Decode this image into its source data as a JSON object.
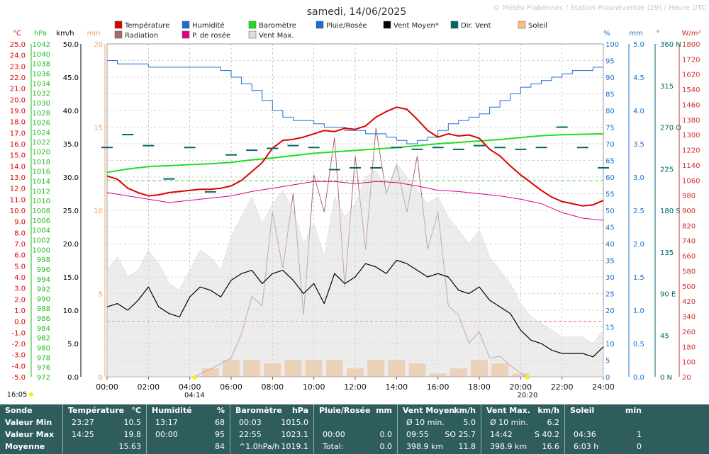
{
  "title": "samedi, 14/06/2025",
  "credit": "© Météo Plabennec / Station Plounéventer (29) / Heure UTC",
  "legend": [
    {
      "label": "Température",
      "color": "#dd0000"
    },
    {
      "label": "Humidité",
      "color": "#1a6fd0"
    },
    {
      "label": "Baromètre",
      "color": "#22dd22"
    },
    {
      "label": "Pluie/Rosée",
      "color": "#1a6fd0"
    },
    {
      "label": "Vent Moyen*",
      "color": "#000000"
    },
    {
      "label": "Dir. Vent",
      "color": "#006666"
    },
    {
      "label": "Soleil",
      "color": "#f8c080"
    },
    {
      "label": "Radiation",
      "color": "#aa6a6a"
    },
    {
      "label": "P. de rosée",
      "color": "#dd0088"
    },
    {
      "label": "Vent Max.",
      "color": "#dddddd"
    }
  ],
  "axes": {
    "temp": {
      "unit": "°C",
      "ticks": [
        "25.0",
        "24.0",
        "23.0",
        "22.0",
        "21.0",
        "20.0",
        "19.0",
        "18.0",
        "17.0",
        "16.0",
        "15.0",
        "14.0",
        "13.0",
        "12.0",
        "11.0",
        "10.0",
        "9.0",
        "8.0",
        "7.0",
        "6.0",
        "5.0",
        "4.0",
        "3.0",
        "2.0",
        "1.0",
        "0.0",
        "-1.0",
        "-2.0",
        "-3.0",
        "-4.0",
        "-5.0"
      ],
      "color": "#dd0000"
    },
    "baro": {
      "unit": "hPa",
      "ticks": [
        "1042",
        "1040",
        "1038",
        "1036",
        "1034",
        "1032",
        "1030",
        "1028",
        "1026",
        "1024",
        "1022",
        "1020",
        "1018",
        "1016",
        "1014",
        "1012",
        "1010",
        "1008",
        "1006",
        "1004",
        "1002",
        "1000",
        "998",
        "996",
        "994",
        "992",
        "990",
        "988",
        "986",
        "984",
        "982",
        "980",
        "978",
        "976",
        "972"
      ],
      "color": "#22bb22"
    },
    "wind": {
      "unit": "km/h",
      "ticks": [
        "50.0",
        "45.0",
        "40.0",
        "35.0",
        "30.0",
        "25.0",
        "20.0",
        "15.0",
        "10.0",
        "5.0",
        "0.0"
      ],
      "color": "#000000"
    },
    "sun": {
      "unit": "min",
      "ticks": [
        "20",
        "15",
        "10",
        "5",
        "0"
      ],
      "color": "#f0a060"
    },
    "hum": {
      "unit": "%",
      "ticks": [
        "100",
        "95",
        "90",
        "85",
        "80",
        "75",
        "70",
        "65",
        "60",
        "55",
        "50",
        "45",
        "40",
        "35",
        "30",
        "25",
        "20",
        "15",
        "10",
        "5",
        "0"
      ],
      "color": "#1a6fd0"
    },
    "rain": {
      "unit": "mm",
      "ticks": [
        "5.0",
        "4.5",
        "4.0",
        "3.5",
        "3.0",
        "2.5",
        "2.0",
        "1.5",
        "1.0",
        "0.5",
        "0.0"
      ],
      "color": "#1a6fd0"
    },
    "dir": {
      "unit": "°",
      "ticks": [
        "360 N",
        "315",
        "270 O",
        "225",
        "180 S",
        "135",
        "90 E",
        "45",
        "0 N"
      ],
      "color": "#006666"
    },
    "rad": {
      "unit": "W/m²",
      "ticks": [
        "1800",
        "1720",
        "1620",
        "1540",
        "1460",
        "1380",
        "1300",
        "1220",
        "1140",
        "1060",
        "980",
        "900",
        "820",
        "740",
        "660",
        "580",
        "500",
        "420",
        "340",
        "260",
        "180",
        "100",
        "20"
      ],
      "color": "#cc3333"
    },
    "x_ticks": [
      "00:00",
      "02:00",
      "04:00",
      "06:00",
      "08:00",
      "10:00",
      "12:00",
      "14:00",
      "16:00",
      "18:00",
      "20:00",
      "22:00",
      "24:00"
    ]
  },
  "sun_events": {
    "prev_sunset": "16:05",
    "sunrise": "04:14",
    "sunset": "20:20"
  },
  "chart_data": {
    "type": "line",
    "title": "samedi, 14/06/2025",
    "x_unit": "hour",
    "xlim": [
      0,
      24
    ],
    "series": [
      {
        "name": "Température",
        "axis": "°C",
        "ylim": [
          -5,
          25
        ],
        "x": [
          0,
          0.5,
          1,
          1.5,
          2,
          2.5,
          3,
          3.5,
          4,
          4.5,
          5,
          5.5,
          6,
          6.5,
          7,
          7.5,
          8,
          8.5,
          9,
          9.5,
          10,
          10.5,
          11,
          11.5,
          12,
          12.5,
          13,
          13.5,
          14,
          14.5,
          15,
          15.5,
          16,
          16.5,
          17,
          17.5,
          18,
          18.5,
          19,
          19.5,
          20,
          20.5,
          21,
          21.5,
          22,
          22.5,
          23,
          23.5,
          24
        ],
        "values": [
          13.1,
          12.8,
          12.0,
          11.6,
          11.3,
          11.4,
          11.6,
          11.7,
          11.8,
          11.9,
          11.9,
          12.0,
          12.2,
          12.7,
          13.5,
          14.3,
          15.6,
          16.3,
          16.4,
          16.6,
          16.9,
          17.2,
          17.1,
          17.4,
          17.3,
          17.6,
          18.4,
          18.9,
          19.3,
          19.1,
          18.2,
          17.2,
          16.6,
          16.9,
          16.7,
          16.8,
          16.5,
          15.5,
          14.9,
          14.0,
          13.2,
          12.5,
          11.8,
          11.2,
          10.8,
          10.6,
          10.4,
          10.5,
          10.9
        ]
      },
      {
        "name": "Humidité",
        "axis": "%",
        "ylim": [
          0,
          100
        ],
        "x": [
          0,
          0.5,
          1,
          2,
          3,
          4,
          5,
          5.5,
          6,
          6.5,
          7,
          7.5,
          8,
          8.5,
          9,
          9.5,
          10,
          10.5,
          11,
          11.5,
          12,
          12.5,
          13,
          13.5,
          14,
          14.5,
          15,
          15.5,
          16,
          16.5,
          17,
          17.5,
          18,
          18.5,
          19,
          19.5,
          20,
          20.5,
          21,
          21.5,
          22,
          22.5,
          23,
          23.5,
          24
        ],
        "values": [
          95,
          94,
          94,
          93,
          93,
          93,
          93,
          92,
          90,
          88,
          86,
          83,
          80,
          78,
          77,
          77,
          76,
          75,
          75,
          74,
          74,
          73,
          73,
          72,
          71,
          70,
          71,
          72,
          74,
          76,
          77,
          78,
          79,
          81,
          83,
          85,
          87,
          88,
          89,
          90,
          91,
          92,
          92,
          93,
          93
        ]
      },
      {
        "name": "Baromètre",
        "axis": "hPa",
        "ylim": [
          972,
          1042
        ],
        "x": [
          0,
          1,
          2,
          3,
          4,
          5,
          6,
          7,
          8,
          9,
          10,
          11,
          12,
          13,
          14,
          15,
          16,
          17,
          18,
          19,
          20,
          21,
          22,
          23,
          24
        ],
        "values": [
          1015.0,
          1015.7,
          1016.2,
          1016.4,
          1016.6,
          1016.8,
          1017.1,
          1017.6,
          1018.0,
          1018.5,
          1019.0,
          1019.3,
          1019.6,
          1019.9,
          1020.2,
          1020.6,
          1021.0,
          1021.3,
          1021.6,
          1021.9,
          1022.3,
          1022.7,
          1022.9,
          1023.0,
          1023.1
        ]
      },
      {
        "name": "P. de rosée",
        "axis": "°C",
        "ylim": [
          -5,
          25
        ],
        "x": [
          0,
          1,
          2,
          3,
          4,
          5,
          6,
          7,
          8,
          9,
          10,
          11,
          12,
          13,
          14,
          15,
          16,
          17,
          18,
          19,
          20,
          21,
          22,
          23,
          24
        ],
        "values": [
          11.6,
          11.3,
          11.0,
          10.7,
          10.9,
          11.1,
          11.3,
          11.7,
          12.0,
          12.3,
          12.6,
          12.6,
          12.4,
          12.6,
          12.5,
          12.2,
          11.8,
          11.7,
          11.5,
          11.3,
          11.0,
          10.6,
          9.8,
          9.3,
          9.1
        ]
      },
      {
        "name": "Vent Moyen*",
        "axis": "km/h",
        "ylim": [
          0,
          50
        ],
        "x": [
          0,
          0.5,
          1,
          1.5,
          2,
          2.5,
          3,
          3.5,
          4,
          4.5,
          5,
          5.5,
          6,
          6.5,
          7,
          7.5,
          8,
          8.5,
          9,
          9.5,
          10,
          10.5,
          11,
          11.5,
          12,
          12.5,
          13,
          13.5,
          14,
          14.5,
          15,
          15.5,
          16,
          16.5,
          17,
          17.5,
          18,
          18.5,
          19,
          19.5,
          20,
          20.5,
          21,
          21.5,
          22,
          22.5,
          23,
          23.5,
          24
        ],
        "values": [
          10.5,
          11.0,
          10.0,
          11.5,
          13.5,
          10.5,
          9.5,
          9.0,
          12.0,
          13.5,
          13.0,
          12.0,
          14.5,
          15.5,
          16.0,
          14.0,
          15.5,
          16.0,
          14.5,
          12.5,
          14.0,
          11.0,
          15.5,
          14.0,
          15.0,
          17.0,
          16.5,
          15.5,
          17.5,
          17.0,
          16.0,
          15.0,
          15.5,
          15.0,
          13.0,
          12.5,
          13.5,
          11.5,
          10.5,
          9.5,
          7.0,
          5.5,
          5.0,
          4.0,
          3.5,
          3.5,
          3.5,
          3.0,
          4.5
        ]
      },
      {
        "name": "Vent Max.",
        "axis": "km/h",
        "ylim": [
          0,
          50
        ],
        "x": [
          0,
          0.5,
          1,
          1.5,
          2,
          2.5,
          3,
          3.5,
          4,
          4.5,
          5,
          5.5,
          6,
          6.5,
          7,
          7.5,
          8,
          8.5,
          9,
          9.5,
          10,
          10.5,
          11,
          11.5,
          12,
          12.5,
          13,
          13.5,
          14,
          14.5,
          15,
          15.5,
          16,
          16.5,
          17,
          17.5,
          18,
          18.5,
          19,
          19.5,
          20,
          20.5,
          21,
          21.5,
          22,
          22.5,
          23,
          23.5,
          24
        ],
        "values": [
          16,
          18,
          15,
          16,
          19,
          17,
          14,
          13,
          16,
          19,
          18,
          16,
          21,
          24,
          27,
          23,
          26,
          28,
          25,
          20,
          23,
          18,
          27,
          24,
          26,
          30,
          31,
          28,
          32,
          30,
          28,
          26,
          27,
          24,
          22,
          20,
          22,
          18,
          16,
          14,
          11,
          9,
          8,
          7,
          6,
          6,
          6,
          5,
          7
        ]
      },
      {
        "name": "Radiation",
        "axis": "W/m²",
        "ylim": [
          20,
          1800
        ],
        "x": [
          4.2,
          5,
          6,
          6.5,
          7,
          7.5,
          8,
          8.5,
          9,
          9.5,
          10,
          10.5,
          11,
          11.5,
          12,
          12.5,
          13,
          13.5,
          14,
          14.5,
          15,
          15.5,
          16,
          16.5,
          17,
          17.5,
          18,
          18.5,
          19,
          19.5,
          20,
          20.3
        ],
        "values": [
          20,
          60,
          120,
          250,
          450,
          400,
          900,
          600,
          1000,
          350,
          1100,
          900,
          1300,
          500,
          1200,
          700,
          1350,
          1000,
          1150,
          900,
          1200,
          700,
          900,
          400,
          350,
          200,
          260,
          120,
          130,
          80,
          40,
          20
        ]
      },
      {
        "name": "Soleil",
        "axis": "min",
        "ylim": [
          0,
          20
        ],
        "x": [
          5,
          6,
          7,
          8,
          9,
          10,
          11,
          12,
          13,
          14,
          15,
          16,
          17,
          18,
          19,
          20
        ],
        "values": [
          0.5,
          1,
          1,
          0.8,
          1,
          1,
          1,
          0.5,
          1,
          1,
          0.8,
          0.2,
          0.5,
          1,
          0.8,
          0.2
        ]
      },
      {
        "name": "Dir. Vent",
        "axis": "°",
        "ylim": [
          0,
          360
        ],
        "x": [
          0,
          1,
          2,
          3,
          4,
          5,
          6,
          7,
          8,
          9,
          10,
          11,
          12,
          13,
          14,
          15,
          16,
          17,
          18,
          19,
          20,
          21,
          22,
          23,
          24
        ],
        "values": [
          248,
          262,
          250,
          214,
          248,
          200,
          240,
          245,
          247,
          250,
          248,
          224,
          226,
          226,
          248,
          246,
          248,
          246,
          250,
          248,
          246,
          248,
          270,
          248,
          226
        ]
      }
    ]
  },
  "footer": {
    "columns": [
      {
        "header": "Sonde",
        "rows": [
          "Valeur Min",
          "Valeur Max",
          "Moyenne"
        ]
      },
      {
        "header": "Température",
        "unit": "°C",
        "rows": [
          [
            "23:27",
            "10.5"
          ],
          [
            "14:25",
            "19.8"
          ],
          [
            "",
            "15.63"
          ]
        ]
      },
      {
        "header": "Humidité",
        "unit": "%",
        "rows": [
          [
            "13:17",
            "68"
          ],
          [
            "00:00",
            "95"
          ],
          [
            "",
            "84"
          ]
        ]
      },
      {
        "header": "Baromètre",
        "unit": "hPa",
        "rows": [
          [
            "00:03",
            "1015.0"
          ],
          [
            "22:55",
            "1023.1"
          ],
          [
            "^1.0hPa/h",
            "1019.1"
          ]
        ]
      },
      {
        "header": "Pluie/Rosée",
        "unit": "mm",
        "rows": [
          [
            "",
            ""
          ],
          [
            "00:00",
            "0.0"
          ],
          [
            "Total:",
            "0.0"
          ]
        ]
      },
      {
        "header": "Vent Moyen",
        "unit": "km/h",
        "rows": [
          [
            "Ø 10 min.",
            "5.0"
          ],
          [
            "09:55",
            "SO 25.7"
          ],
          [
            "398.9 km",
            "11.8"
          ]
        ]
      },
      {
        "header": "Vent Max.",
        "unit": "km/h",
        "rows": [
          [
            "Ø 10 min.",
            "6.2"
          ],
          [
            "14:42",
            "S 40.2"
          ],
          [
            "398.9 km",
            "16.6"
          ]
        ]
      },
      {
        "header": "Soleil",
        "unit": "min",
        "rows": [
          [
            "",
            ""
          ],
          [
            "04:36",
            "1"
          ],
          [
            "6:03 h",
            "0"
          ]
        ]
      }
    ]
  }
}
